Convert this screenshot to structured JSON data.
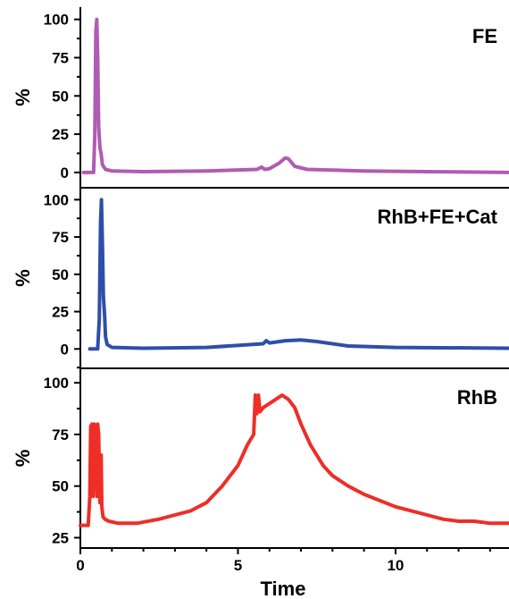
{
  "chart_data": {
    "type": "line",
    "xlabel": "Time",
    "xlim": [
      0,
      13.6
    ],
    "xticks": [
      0,
      5,
      10
    ],
    "panels": [
      {
        "label": "FE",
        "ylabel": "%",
        "color": "#b05cb3",
        "ylim": [
          -10,
          108
        ],
        "yticks": [
          0,
          25,
          50,
          75,
          100
        ],
        "x": [
          0.1,
          0.42,
          0.46,
          0.49,
          0.52,
          0.55,
          0.58,
          0.62,
          0.66,
          0.7,
          0.8,
          1.0,
          2.0,
          4.0,
          5.6,
          5.75,
          5.85,
          6.0,
          6.3,
          6.5,
          6.6,
          6.8,
          7.2,
          9.0,
          11.0,
          13.6
        ],
        "y": [
          0,
          0,
          25,
          92,
          100,
          75,
          30,
          16,
          12,
          5,
          2,
          1,
          0.5,
          1,
          2,
          3.5,
          2,
          2.5,
          6,
          9.5,
          9,
          4,
          2,
          1,
          0.5,
          0
        ]
      },
      {
        "label": "RhB+FE+Cat",
        "ylabel": "%",
        "color": "#2e4fa8",
        "ylim": [
          -13,
          108
        ],
        "yticks": [
          0,
          25,
          50,
          75,
          100
        ],
        "x": [
          0.3,
          0.55,
          0.6,
          0.64,
          0.67,
          0.7,
          0.73,
          0.77,
          0.8,
          0.85,
          1.0,
          2.0,
          4.0,
          5.8,
          5.9,
          6.0,
          6.5,
          7.0,
          7.5,
          8.5,
          10.0,
          13.6
        ],
        "y": [
          0,
          0,
          20,
          85,
          100,
          70,
          35,
          22,
          8,
          3,
          1,
          0.5,
          1,
          3.5,
          5.5,
          4,
          5.5,
          6,
          5,
          2,
          1,
          0.5
        ]
      },
      {
        "label": "RhB",
        "ylabel": "%",
        "color": "#ee2e27",
        "ylim": [
          20,
          107
        ],
        "yticks": [
          25,
          50,
          75,
          100
        ],
        "x": [
          0.0,
          0.25,
          0.3,
          0.33,
          0.37,
          0.4,
          0.44,
          0.48,
          0.52,
          0.55,
          0.58,
          0.62,
          0.66,
          0.68,
          0.72,
          0.78,
          0.9,
          1.2,
          1.8,
          2.5,
          3.0,
          3.5,
          4.0,
          4.5,
          5.0,
          5.3,
          5.5,
          5.55,
          5.6,
          5.65,
          5.7,
          5.8,
          6.0,
          6.2,
          6.4,
          6.6,
          6.8,
          7.0,
          7.3,
          7.7,
          8.0,
          8.5,
          9.0,
          9.5,
          10.0,
          10.5,
          11.0,
          11.5,
          12.0,
          12.5,
          13.0,
          13.6
        ],
        "y": [
          31,
          31,
          45,
          79,
          80,
          45,
          80,
          79,
          45,
          80,
          75,
          42,
          65,
          40,
          35,
          34,
          33,
          32,
          32,
          34,
          36,
          38,
          42,
          50,
          60,
          70,
          75,
          94,
          85,
          94,
          86,
          88,
          90,
          92,
          94,
          92,
          88,
          80,
          70,
          60,
          55,
          50,
          46,
          43,
          40,
          38,
          36,
          34,
          33,
          33,
          32,
          32
        ]
      }
    ]
  }
}
